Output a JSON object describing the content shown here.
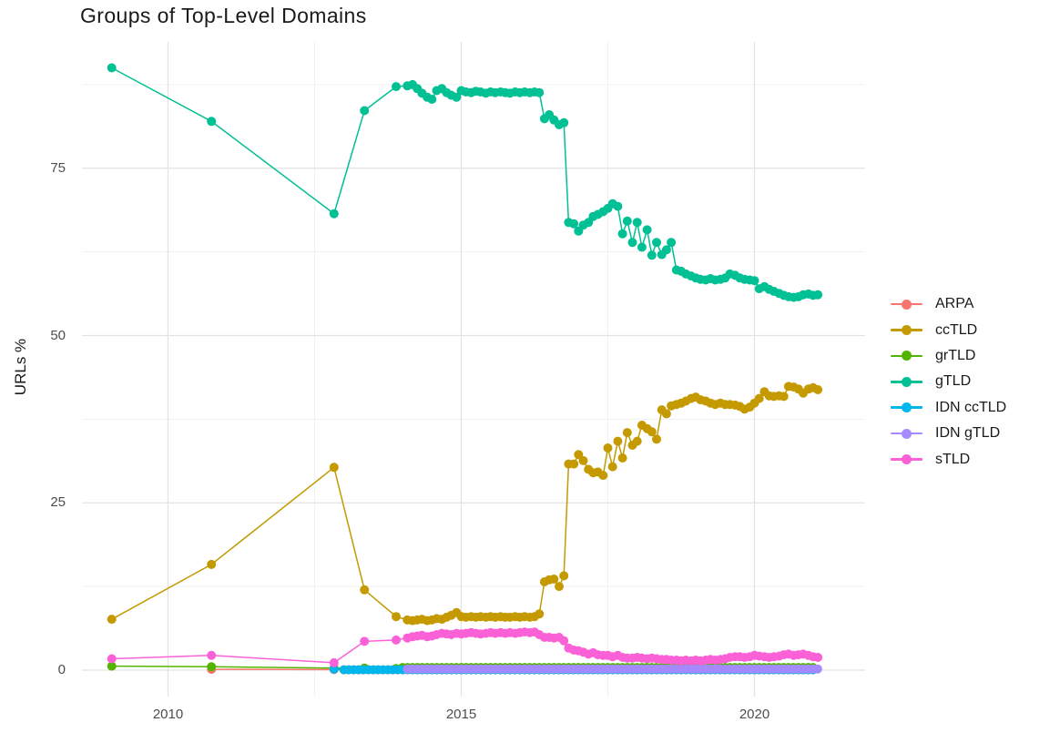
{
  "chart_data": {
    "type": "line",
    "title": "Groups of Top-Level Domains",
    "xlabel": "",
    "ylabel": "URLs %",
    "grid": true,
    "legend_position": "right",
    "x_axis": {
      "ticks": [
        2010,
        2015,
        2020
      ],
      "tick_labels": [
        "2010",
        "2015",
        "2020"
      ],
      "minor": [
        2012.5,
        2017.5
      ],
      "range": [
        2008.6,
        2021.9
      ]
    },
    "y_axis": {
      "ticks": [
        0,
        25,
        50,
        75
      ],
      "tick_labels": [
        "0",
        "25",
        "50",
        "75"
      ],
      "minor": [
        12.5,
        37.5,
        62.5,
        87.5
      ],
      "range": [
        -3.9,
        93.8
      ]
    },
    "series": [
      {
        "name": "ARPA",
        "color": "#F8766D",
        "points": [
          [
            2010.74,
            0.12
          ],
          [
            2012.83,
            0.08
          ]
        ],
        "flat": {
          "from": 2013.0,
          "to": 2021.08,
          "step": 0.0833,
          "value": 0.05
        }
      },
      {
        "name": "ccTLD",
        "color": "#C49A00",
        "points": [
          [
            2009.04,
            7.6
          ],
          [
            2010.74,
            15.8
          ],
          [
            2012.83,
            30.3
          ],
          [
            2013.35,
            12.0
          ],
          [
            2013.89,
            8.0
          ],
          [
            2014.08,
            7.5
          ],
          [
            2014.17,
            7.4
          ],
          [
            2014.25,
            7.5
          ],
          [
            2014.33,
            7.6
          ],
          [
            2014.42,
            7.4
          ],
          [
            2014.5,
            7.5
          ],
          [
            2014.58,
            7.7
          ],
          [
            2014.67,
            7.6
          ],
          [
            2014.75,
            7.9
          ],
          [
            2014.83,
            8.2
          ],
          [
            2014.92,
            8.6
          ],
          [
            2015.0,
            8.0
          ],
          [
            2015.08,
            7.9
          ],
          [
            2015.17,
            8.0
          ],
          [
            2015.25,
            7.9
          ],
          [
            2015.33,
            8.0
          ],
          [
            2015.42,
            7.9
          ],
          [
            2015.5,
            8.0
          ],
          [
            2015.58,
            7.9
          ],
          [
            2015.67,
            8.0
          ],
          [
            2015.75,
            7.9
          ],
          [
            2015.83,
            7.9
          ],
          [
            2015.92,
            8.0
          ],
          [
            2016.0,
            7.9
          ],
          [
            2016.08,
            8.0
          ],
          [
            2016.17,
            7.9
          ],
          [
            2016.25,
            8.0
          ],
          [
            2016.33,
            8.4
          ],
          [
            2016.42,
            13.2
          ],
          [
            2016.5,
            13.5
          ],
          [
            2016.58,
            13.6
          ],
          [
            2016.67,
            12.5
          ],
          [
            2016.75,
            14.1
          ],
          [
            2016.83,
            30.8
          ],
          [
            2016.92,
            30.8
          ],
          [
            2017.0,
            32.2
          ],
          [
            2017.08,
            31.3
          ],
          [
            2017.17,
            30.0
          ],
          [
            2017.25,
            29.5
          ],
          [
            2017.33,
            29.6
          ],
          [
            2017.42,
            29.1
          ],
          [
            2017.5,
            33.2
          ],
          [
            2017.58,
            30.4
          ],
          [
            2017.67,
            34.2
          ],
          [
            2017.75,
            31.7
          ],
          [
            2017.83,
            35.5
          ],
          [
            2017.92,
            33.6
          ],
          [
            2018.0,
            34.2
          ],
          [
            2018.08,
            36.6
          ],
          [
            2018.17,
            36.1
          ],
          [
            2018.25,
            35.6
          ],
          [
            2018.33,
            34.5
          ],
          [
            2018.42,
            38.9
          ],
          [
            2018.5,
            38.3
          ],
          [
            2018.58,
            39.5
          ],
          [
            2018.67,
            39.7
          ],
          [
            2018.75,
            39.9
          ],
          [
            2018.83,
            40.2
          ],
          [
            2018.92,
            40.6
          ],
          [
            2019.0,
            40.8
          ],
          [
            2019.08,
            40.4
          ],
          [
            2019.17,
            40.2
          ],
          [
            2019.25,
            39.9
          ],
          [
            2019.33,
            39.7
          ],
          [
            2019.42,
            39.9
          ],
          [
            2019.5,
            39.7
          ],
          [
            2019.58,
            39.7
          ],
          [
            2019.67,
            39.6
          ],
          [
            2019.75,
            39.4
          ],
          [
            2019.83,
            39.0
          ],
          [
            2019.92,
            39.3
          ],
          [
            2020.0,
            39.9
          ],
          [
            2020.08,
            40.6
          ],
          [
            2020.17,
            41.6
          ],
          [
            2020.25,
            41.0
          ],
          [
            2020.33,
            40.9
          ],
          [
            2020.42,
            41.0
          ],
          [
            2020.5,
            40.9
          ],
          [
            2020.58,
            42.4
          ],
          [
            2020.67,
            42.3
          ],
          [
            2020.75,
            42.0
          ],
          [
            2020.83,
            41.4
          ],
          [
            2020.92,
            42.0
          ],
          [
            2021.0,
            42.2
          ],
          [
            2021.08,
            41.9
          ]
        ]
      },
      {
        "name": "grTLD",
        "color": "#53B400",
        "points": [
          [
            2009.04,
            0.6
          ],
          [
            2010.74,
            0.5
          ],
          [
            2012.83,
            0.3
          ],
          [
            2013.35,
            0.3
          ],
          [
            2013.89,
            0.25
          ]
        ],
        "flat": {
          "from": 2014.0,
          "to": 2021.08,
          "step": 0.0833,
          "value": 0.4
        }
      },
      {
        "name": "gTLD",
        "color": "#00C094",
        "points": [
          [
            2009.04,
            90.0
          ],
          [
            2010.74,
            82.0
          ],
          [
            2012.83,
            68.2
          ],
          [
            2013.35,
            83.6
          ],
          [
            2013.89,
            87.2
          ],
          [
            2014.08,
            87.3
          ],
          [
            2014.17,
            87.5
          ],
          [
            2014.25,
            86.9
          ],
          [
            2014.33,
            86.2
          ],
          [
            2014.42,
            85.6
          ],
          [
            2014.5,
            85.3
          ],
          [
            2014.58,
            86.6
          ],
          [
            2014.67,
            86.9
          ],
          [
            2014.75,
            86.3
          ],
          [
            2014.83,
            85.9
          ],
          [
            2014.92,
            85.6
          ],
          [
            2015.0,
            86.6
          ],
          [
            2015.08,
            86.4
          ],
          [
            2015.17,
            86.3
          ],
          [
            2015.25,
            86.5
          ],
          [
            2015.33,
            86.4
          ],
          [
            2015.42,
            86.2
          ],
          [
            2015.5,
            86.4
          ],
          [
            2015.58,
            86.3
          ],
          [
            2015.67,
            86.4
          ],
          [
            2015.75,
            86.3
          ],
          [
            2015.83,
            86.2
          ],
          [
            2015.92,
            86.4
          ],
          [
            2016.0,
            86.3
          ],
          [
            2016.08,
            86.4
          ],
          [
            2016.17,
            86.3
          ],
          [
            2016.25,
            86.4
          ],
          [
            2016.33,
            86.3
          ],
          [
            2016.42,
            82.4
          ],
          [
            2016.5,
            83.0
          ],
          [
            2016.58,
            82.2
          ],
          [
            2016.67,
            81.5
          ],
          [
            2016.75,
            81.8
          ],
          [
            2016.83,
            66.9
          ],
          [
            2016.92,
            66.7
          ],
          [
            2017.0,
            65.6
          ],
          [
            2017.08,
            66.5
          ],
          [
            2017.17,
            66.9
          ],
          [
            2017.25,
            67.8
          ],
          [
            2017.33,
            68.1
          ],
          [
            2017.42,
            68.5
          ],
          [
            2017.5,
            69.0
          ],
          [
            2017.58,
            69.7
          ],
          [
            2017.67,
            69.3
          ],
          [
            2017.75,
            65.2
          ],
          [
            2017.83,
            67.1
          ],
          [
            2017.92,
            63.9
          ],
          [
            2018.0,
            66.9
          ],
          [
            2018.08,
            63.2
          ],
          [
            2018.17,
            65.8
          ],
          [
            2018.25,
            62.0
          ],
          [
            2018.33,
            63.9
          ],
          [
            2018.42,
            62.1
          ],
          [
            2018.5,
            62.8
          ],
          [
            2018.58,
            63.9
          ],
          [
            2018.67,
            59.8
          ],
          [
            2018.75,
            59.6
          ],
          [
            2018.83,
            59.2
          ],
          [
            2018.92,
            58.9
          ],
          [
            2019.0,
            58.6
          ],
          [
            2019.08,
            58.4
          ],
          [
            2019.17,
            58.3
          ],
          [
            2019.25,
            58.5
          ],
          [
            2019.33,
            58.3
          ],
          [
            2019.42,
            58.4
          ],
          [
            2019.5,
            58.6
          ],
          [
            2019.58,
            59.2
          ],
          [
            2019.67,
            59.0
          ],
          [
            2019.75,
            58.6
          ],
          [
            2019.83,
            58.4
          ],
          [
            2019.92,
            58.3
          ],
          [
            2020.0,
            58.2
          ],
          [
            2020.08,
            57.0
          ],
          [
            2020.17,
            57.3
          ],
          [
            2020.25,
            56.9
          ],
          [
            2020.33,
            56.6
          ],
          [
            2020.42,
            56.3
          ],
          [
            2020.5,
            56.0
          ],
          [
            2020.58,
            55.8
          ],
          [
            2020.67,
            55.7
          ],
          [
            2020.75,
            55.8
          ],
          [
            2020.83,
            56.1
          ],
          [
            2020.92,
            56.2
          ],
          [
            2021.0,
            56.0
          ],
          [
            2021.08,
            56.1
          ]
        ]
      },
      {
        "name": "IDN ccTLD",
        "color": "#00B6EB",
        "points": [
          [
            2012.83,
            0.15
          ]
        ],
        "flat": {
          "from": 2013.0,
          "to": 2021.08,
          "step": 0.0833,
          "value": 0.06
        }
      },
      {
        "name": "IDN gTLD",
        "color": "#A58AFF",
        "points": [],
        "flat": {
          "from": 2014.08,
          "to": 2021.08,
          "step": 0.0833,
          "value": 0.18
        }
      },
      {
        "name": "sTLD",
        "color": "#FB61D7",
        "points": [
          [
            2009.04,
            1.7
          ],
          [
            2010.74,
            2.2
          ],
          [
            2012.83,
            1.1
          ],
          [
            2013.35,
            4.3
          ],
          [
            2013.89,
            4.5
          ],
          [
            2014.08,
            4.8
          ],
          [
            2014.17,
            5.0
          ],
          [
            2014.25,
            5.1
          ],
          [
            2014.33,
            5.2
          ],
          [
            2014.42,
            5.0
          ],
          [
            2014.5,
            5.1
          ],
          [
            2014.58,
            5.3
          ],
          [
            2014.67,
            5.5
          ],
          [
            2014.75,
            5.4
          ],
          [
            2014.83,
            5.3
          ],
          [
            2014.92,
            5.5
          ],
          [
            2015.0,
            5.4
          ],
          [
            2015.08,
            5.5
          ],
          [
            2015.17,
            5.6
          ],
          [
            2015.25,
            5.5
          ],
          [
            2015.33,
            5.4
          ],
          [
            2015.42,
            5.5
          ],
          [
            2015.5,
            5.6
          ],
          [
            2015.58,
            5.5
          ],
          [
            2015.67,
            5.6
          ],
          [
            2015.75,
            5.5
          ],
          [
            2015.83,
            5.6
          ],
          [
            2015.92,
            5.5
          ],
          [
            2016.0,
            5.6
          ],
          [
            2016.08,
            5.7
          ],
          [
            2016.17,
            5.6
          ],
          [
            2016.25,
            5.7
          ],
          [
            2016.33,
            5.3
          ],
          [
            2016.42,
            4.9
          ],
          [
            2016.5,
            4.9
          ],
          [
            2016.58,
            4.8
          ],
          [
            2016.67,
            4.9
          ],
          [
            2016.75,
            4.4
          ],
          [
            2016.83,
            3.3
          ],
          [
            2016.92,
            3.0
          ],
          [
            2017.0,
            2.9
          ],
          [
            2017.08,
            2.7
          ],
          [
            2017.17,
            2.4
          ],
          [
            2017.25,
            2.6
          ],
          [
            2017.33,
            2.3
          ],
          [
            2017.42,
            2.2
          ],
          [
            2017.5,
            2.2
          ],
          [
            2017.58,
            2.0
          ],
          [
            2017.67,
            2.2
          ],
          [
            2017.75,
            1.9
          ],
          [
            2017.83,
            1.8
          ],
          [
            2017.92,
            1.8
          ],
          [
            2018.0,
            1.9
          ],
          [
            2018.08,
            1.8
          ],
          [
            2018.17,
            1.7
          ],
          [
            2018.25,
            1.8
          ],
          [
            2018.33,
            1.7
          ],
          [
            2018.42,
            1.6
          ],
          [
            2018.5,
            1.6
          ],
          [
            2018.58,
            1.5
          ],
          [
            2018.67,
            1.5
          ],
          [
            2018.75,
            1.4
          ],
          [
            2018.83,
            1.5
          ],
          [
            2018.92,
            1.4
          ],
          [
            2019.0,
            1.5
          ],
          [
            2019.08,
            1.4
          ],
          [
            2019.17,
            1.5
          ],
          [
            2019.25,
            1.6
          ],
          [
            2019.33,
            1.5
          ],
          [
            2019.42,
            1.6
          ],
          [
            2019.5,
            1.7
          ],
          [
            2019.58,
            1.9
          ],
          [
            2019.67,
            2.0
          ],
          [
            2019.75,
            2.0
          ],
          [
            2019.83,
            1.9
          ],
          [
            2019.92,
            2.0
          ],
          [
            2020.0,
            2.2
          ],
          [
            2020.08,
            2.1
          ],
          [
            2020.17,
            2.0
          ],
          [
            2020.25,
            1.9
          ],
          [
            2020.33,
            2.0
          ],
          [
            2020.42,
            2.1
          ],
          [
            2020.5,
            2.3
          ],
          [
            2020.58,
            2.4
          ],
          [
            2020.67,
            2.2
          ],
          [
            2020.75,
            2.3
          ],
          [
            2020.83,
            2.4
          ],
          [
            2020.92,
            2.2
          ],
          [
            2021.0,
            2.0
          ],
          [
            2021.08,
            1.9
          ]
        ]
      }
    ],
    "colors": {
      "grid_major": "#e3e3e3",
      "grid_minor": "#f1f1f1",
      "axis_text": "#4d4d4d",
      "title_text": "#1a1a1a"
    }
  }
}
